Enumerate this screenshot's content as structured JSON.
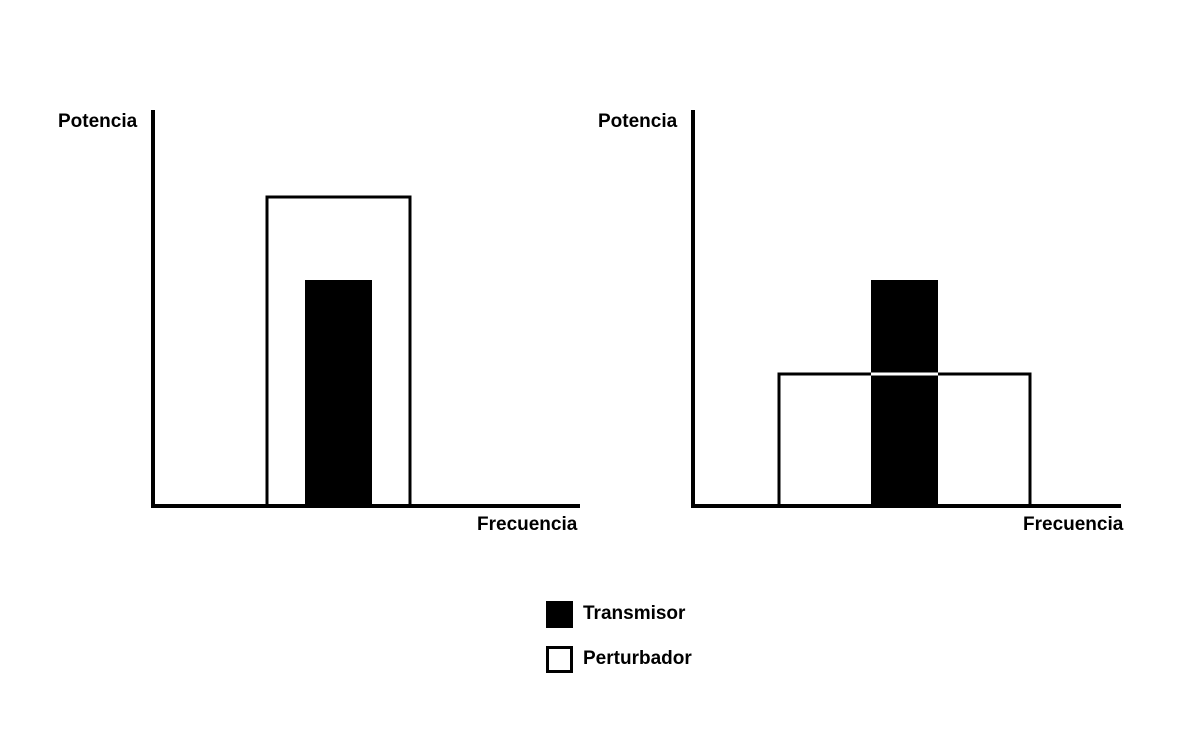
{
  "panels": [
    {
      "y_label": "Potencia",
      "x_label": "Frecuencia",
      "description_kind": "narrowband"
    },
    {
      "y_label": "Potencia",
      "x_label": "Frecuencia",
      "description_kind": "broadband"
    }
  ],
  "legend": {
    "transmitter": "Transmisor",
    "jammer": "Perturbador"
  },
  "colors": {
    "transmitter": "#000000",
    "jammer_fill": "#ffffff",
    "stroke": "#000000"
  }
}
